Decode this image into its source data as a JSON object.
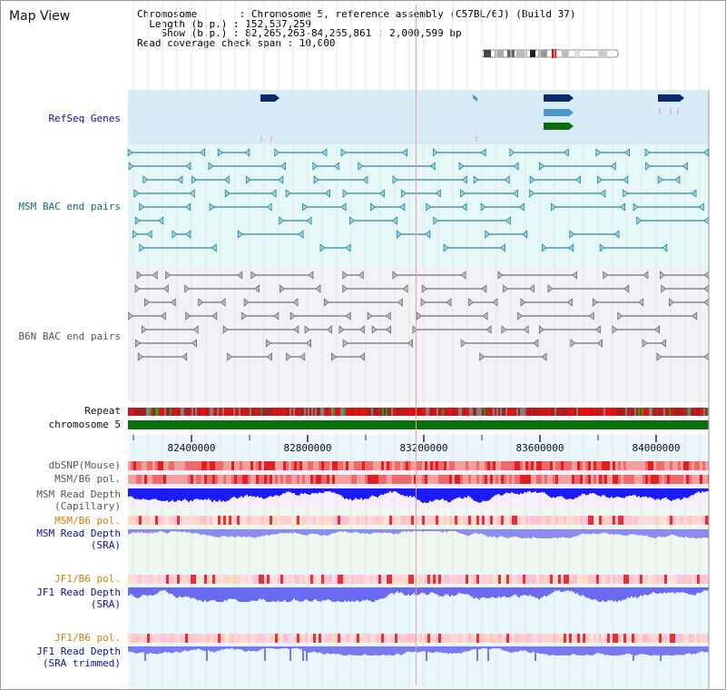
{
  "header": {
    "title": "Map View",
    "info_lines": [
      "Chromosome       : Chromosome 5, reference assembly (C57BL/6J) (Build 37)",
      "  Length (b.p.) : 152,537,259",
      "    Show (b.p.) : 82,265,263-84,265,861 : 2,000,599 bp",
      "Read coverage check span : 10,000"
    ]
  },
  "tracks": {
    "refseq": "RefSeq Genes",
    "msm_bac": "MSM BAC end pairs",
    "b6n_bac": "B6N BAC end pairs",
    "repeat": "Repeat",
    "chromosome": "chromosome 5",
    "dbsnp": "dbSNP(Mouse)",
    "msm_b6_pol": "MSM/B6 pol.",
    "msm_depth_cap": "MSM Read Depth\n(Capillary)",
    "msm_b6_pol_2": "MSM/B6 pol.",
    "msm_depth_sra": "MSM Read Depth\n(SRA)",
    "jf1_b6_pol": "JF1/B6 pol.",
    "jf1_depth_sra": "JF1 Read Depth\n(SRA)",
    "jf1_b6_pol_2": "JF1/B6 pol.",
    "jf1_depth_trim": "JF1 Read Depth\n(SRA trimmed)"
  },
  "axis": {
    "ticks": [
      "82400000",
      "82800000",
      "83200000",
      "83600000",
      "84000000"
    ]
  },
  "colors": {
    "navy_label": "#1010a0",
    "teal_label": "#106a80",
    "orange_label": "#d08000",
    "chromosome_bar": "#0a6e0a",
    "depth_blue": "#1a1aff",
    "snp_red": "#ee2020"
  }
}
